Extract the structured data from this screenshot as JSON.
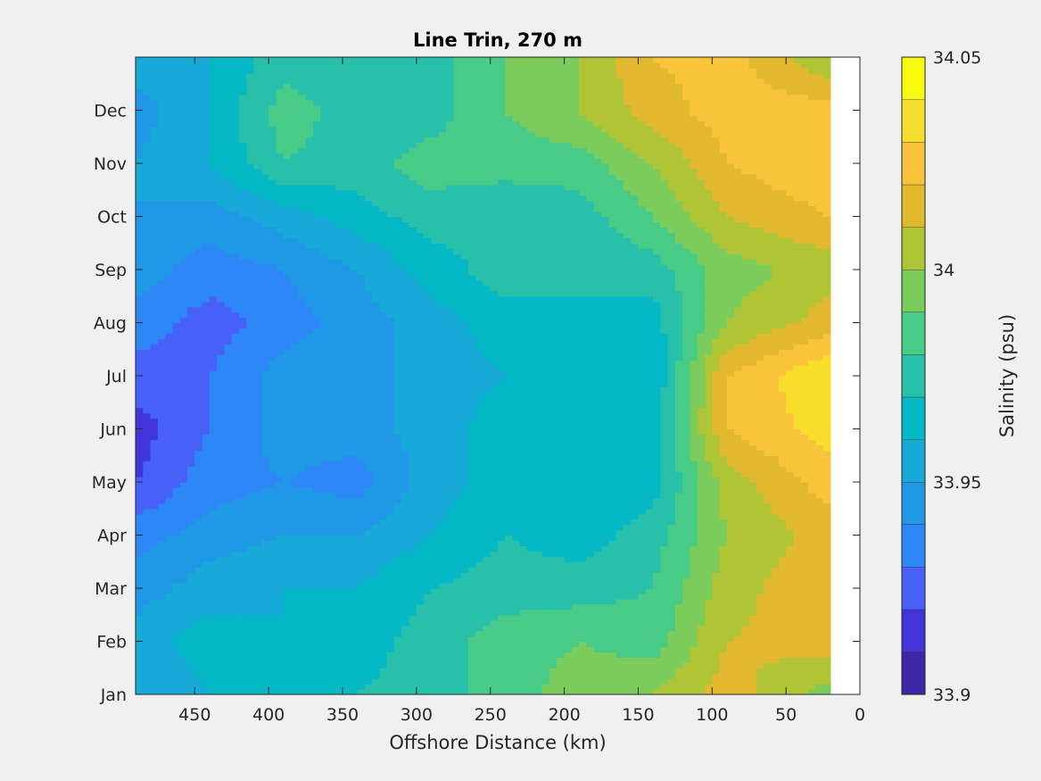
{
  "chart_data": {
    "type": "heatmap",
    "subtype": "filled-contour",
    "title": "Line Trin, 270 m",
    "xlabel": "Offshore Distance (km)",
    "ylabel": "",
    "xlim": [
      490,
      0
    ],
    "x_reversed": true,
    "x_ticks": [
      450,
      400,
      350,
      300,
      250,
      200,
      150,
      100,
      50,
      0
    ],
    "y_ticks": [
      "Jan",
      "Feb",
      "Mar",
      "Apr",
      "May",
      "Jun",
      "Jul",
      "Aug",
      "Sep",
      "Oct",
      "Nov",
      "Dec"
    ],
    "data_extent_km": [
      490,
      20
    ],
    "grid": false,
    "x": [
      490,
      440,
      390,
      340,
      290,
      240,
      190,
      140,
      90,
      20
    ],
    "y": [
      "Jan",
      "Feb",
      "Mar",
      "Apr",
      "May",
      "Jun",
      "Jul",
      "Aug",
      "Sep",
      "Oct",
      "Nov",
      "Dec",
      "Jan"
    ],
    "values": [
      [
        33.95,
        33.96,
        33.965,
        33.97,
        33.975,
        33.985,
        33.995,
        34.0,
        34.015,
        33.995
      ],
      [
        33.955,
        33.965,
        33.96,
        33.965,
        33.975,
        33.985,
        33.99,
        33.985,
        34.01,
        34.015
      ],
      [
        33.945,
        33.955,
        33.96,
        33.96,
        33.97,
        33.975,
        33.975,
        33.98,
        34.005,
        34.02
      ],
      [
        33.935,
        33.945,
        33.95,
        33.95,
        33.96,
        33.97,
        33.965,
        33.975,
        34.0,
        34.015
      ],
      [
        33.92,
        33.935,
        33.94,
        33.935,
        33.955,
        33.965,
        33.96,
        33.965,
        34.005,
        34.025
      ],
      [
        33.915,
        33.93,
        33.945,
        33.945,
        33.955,
        33.965,
        33.965,
        33.965,
        34.02,
        34.035
      ],
      [
        33.925,
        33.93,
        33.945,
        33.945,
        33.955,
        33.96,
        33.965,
        33.96,
        34.02,
        34.04
      ],
      [
        33.935,
        33.925,
        33.935,
        33.945,
        33.955,
        33.965,
        33.97,
        33.965,
        34.0,
        34.015
      ],
      [
        33.945,
        33.935,
        33.94,
        33.95,
        33.965,
        33.975,
        33.97,
        33.975,
        33.995,
        34.005
      ],
      [
        33.95,
        33.945,
        33.955,
        33.965,
        33.975,
        33.97,
        33.975,
        33.99,
        34.01,
        34.02
      ],
      [
        33.95,
        33.96,
        33.98,
        33.975,
        33.985,
        33.985,
        33.985,
        34.0,
        34.02,
        34.03
      ],
      [
        33.945,
        33.96,
        33.985,
        33.975,
        33.975,
        33.99,
        34.0,
        34.015,
        34.025,
        34.025
      ],
      [
        33.955,
        33.96,
        33.975,
        33.97,
        33.975,
        33.99,
        34.0,
        34.02,
        34.025,
        34.0
      ]
    ],
    "colorbar": {
      "label": "Salinity (psu)",
      "min": 33.9,
      "max": 34.05,
      "ticks": [
        33.9,
        33.95,
        34,
        34.05
      ],
      "tick_labels": [
        "33.9",
        "33.95",
        "34",
        "34.05"
      ],
      "levels": [
        33.9,
        33.91,
        33.92,
        33.93,
        33.94,
        33.95,
        33.96,
        33.97,
        33.98,
        33.99,
        34.0,
        34.01,
        34.02,
        34.03,
        34.04,
        34.05
      ],
      "colors": [
        "#3e26a8",
        "#4135d9",
        "#4760f8",
        "#2e87f7",
        "#1f99e5",
        "#17a9d8",
        "#05b8c6",
        "#29c0ab",
        "#48cb86",
        "#7bcc5a",
        "#b0c536",
        "#e1b82e",
        "#fac43a",
        "#f8de2b",
        "#f9fb0e"
      ]
    },
    "no_data_color": "#ffffff"
  }
}
